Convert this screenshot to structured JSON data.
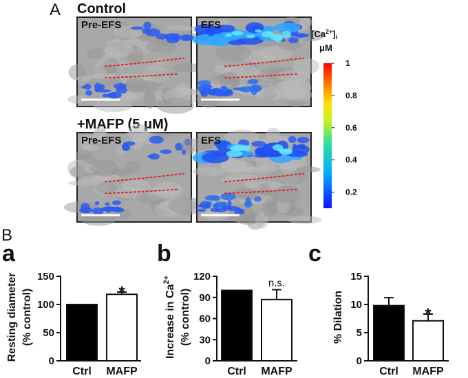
{
  "figure": {
    "panel_a": {
      "letter": "A",
      "rows": [
        {
          "title": "Control",
          "images": [
            "Pre-EFS",
            "EFS"
          ]
        },
        {
          "title": "+MAFP (5 μM)",
          "images": [
            "Pre-EFS",
            "EFS"
          ]
        }
      ],
      "colorbar": {
        "label": [
          "[Ca",
          "2+",
          "]",
          "i"
        ],
        "unit": "μM",
        "lim": [
          0.1,
          1
        ],
        "ticks": [
          0.2,
          0.4,
          0.6,
          0.8,
          1
        ]
      }
    },
    "panel_b": {
      "letter": "B"
    }
  },
  "chart_data": [
    {
      "type": "bar",
      "panel": "a",
      "ylabel": [
        "Resting diameter",
        "(% control)"
      ],
      "categories": [
        "Ctrl",
        "MAFP"
      ],
      "values": [
        100,
        118
      ],
      "errors": [
        null,
        4
      ],
      "colors": [
        "#000000",
        "#ffffff"
      ],
      "annotation": "*",
      "ylim": [
        0,
        150
      ],
      "yticks": [
        0,
        50,
        100,
        150
      ]
    },
    {
      "type": "bar",
      "panel": "b",
      "ylabel": [
        "Increase in Ca",
        "(% control)"
      ],
      "ylabel_sup": "2+",
      "categories": [
        "Ctrl",
        "MAFP"
      ],
      "values": [
        100,
        87
      ],
      "errors": [
        null,
        14
      ],
      "colors": [
        "#000000",
        "#ffffff"
      ],
      "annotation": "n.s.",
      "ylim": [
        0,
        120
      ],
      "yticks": [
        0,
        30,
        60,
        90,
        120
      ]
    },
    {
      "type": "bar",
      "panel": "c",
      "ylabel": [
        "% Dilation"
      ],
      "categories": [
        "Ctrl",
        "MAFP"
      ],
      "values": [
        9.8,
        7.1
      ],
      "errors": [
        1.4,
        1.2
      ],
      "colors": [
        "#000000",
        "#ffffff"
      ],
      "annotation": "*",
      "ylim": [
        0,
        15
      ],
      "yticks": [
        0,
        5,
        10,
        15
      ]
    }
  ]
}
